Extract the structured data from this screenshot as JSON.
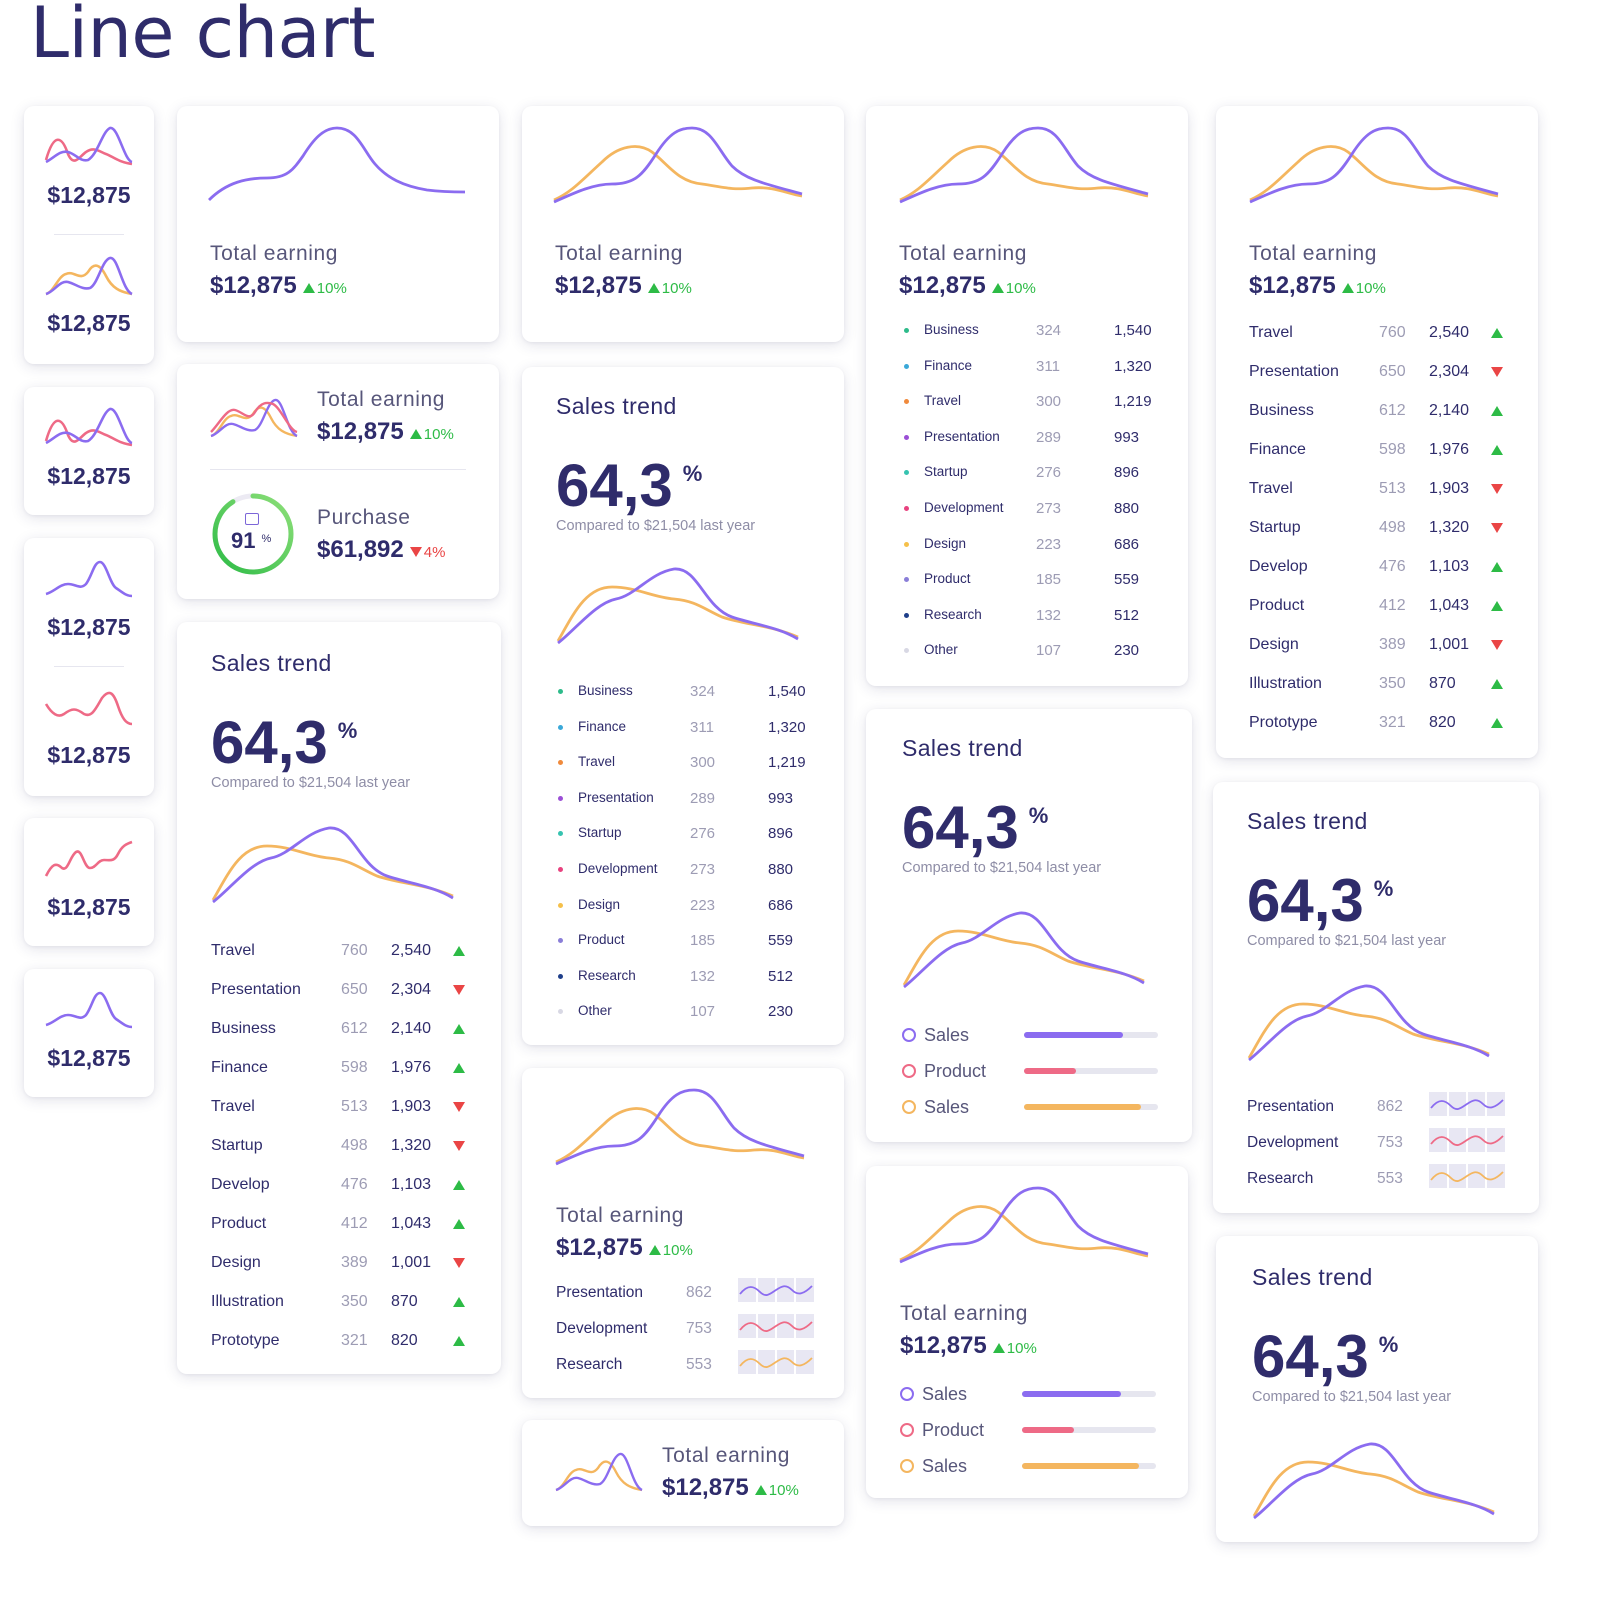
{
  "page_title": "Line chart",
  "colors": {
    "purple": "#8b6cf0",
    "orange": "#f4b65f",
    "pink": "#ee6a86",
    "green": "#2dbb46",
    "red": "#ea4545",
    "navy": "#2f2c6b"
  },
  "mini": {
    "value": "$12,875"
  },
  "earning": {
    "label": "Total earning",
    "value": "$12,875",
    "change": "10%"
  },
  "purchase": {
    "label": "Purchase",
    "value": "$61,892",
    "change": "4%",
    "gauge": "91",
    "gauge_unit": "%",
    "gauge_level": 0.91,
    "icon": "bag-icon"
  },
  "trend": {
    "title": "Sales trend",
    "value": "64,3",
    "unit": "%",
    "compare": "Compared to $21,504 last year"
  },
  "categories": [
    {
      "name": "Travel",
      "a": "760",
      "b": "2,540",
      "dir": "up"
    },
    {
      "name": "Presentation",
      "a": "650",
      "b": "2,304",
      "dir": "down"
    },
    {
      "name": "Business",
      "a": "612",
      "b": "2,140",
      "dir": "up"
    },
    {
      "name": "Finance",
      "a": "598",
      "b": "1,976",
      "dir": "up"
    },
    {
      "name": "Travel",
      "a": "513",
      "b": "1,903",
      "dir": "down"
    },
    {
      "name": "Startup",
      "a": "498",
      "b": "1,320",
      "dir": "down"
    },
    {
      "name": "Develop",
      "a": "476",
      "b": "1,103",
      "dir": "up"
    },
    {
      "name": "Product",
      "a": "412",
      "b": "1,043",
      "dir": "up"
    },
    {
      "name": "Design",
      "a": "389",
      "b": "1,001",
      "dir": "down"
    },
    {
      "name": "Illustration",
      "a": "350",
      "b": "870",
      "dir": "up"
    },
    {
      "name": "Prototype",
      "a": "321",
      "b": "820",
      "dir": "up"
    }
  ],
  "bullets": [
    {
      "name": "Business",
      "a": "324",
      "b": "1,540",
      "color": "#2dbb8a"
    },
    {
      "name": "Finance",
      "a": "311",
      "b": "1,320",
      "color": "#3aa8d8"
    },
    {
      "name": "Travel",
      "a": "300",
      "b": "1,219",
      "color": "#f08a3c"
    },
    {
      "name": "Presentation",
      "a": "289",
      "b": "993",
      "color": "#9b4fd6"
    },
    {
      "name": "Startup",
      "a": "276",
      "b": "896",
      "color": "#36c3b0"
    },
    {
      "name": "Development",
      "a": "273",
      "b": "880",
      "color": "#e8427f"
    },
    {
      "name": "Design",
      "a": "223",
      "b": "686",
      "color": "#f5c04a"
    },
    {
      "name": "Product",
      "a": "185",
      "b": "559",
      "color": "#8a7ed8"
    },
    {
      "name": "Research",
      "a": "132",
      "b": "512",
      "color": "#1f3f8a"
    },
    {
      "name": "Other",
      "a": "107",
      "b": "230",
      "color": "#d8d8e4"
    }
  ],
  "sparks": [
    {
      "name": "Presentation",
      "value": "862",
      "color": "#8b6cf0"
    },
    {
      "name": "Development",
      "value": "753",
      "color": "#ee6a86"
    },
    {
      "name": "Research",
      "value": "553",
      "color": "#f4b65f"
    }
  ],
  "progress": [
    {
      "name": "Sales",
      "level": 0.74,
      "color": "#8b6cf0"
    },
    {
      "name": "Product",
      "level": 0.39,
      "color": "#ee6a86"
    },
    {
      "name": "Sales",
      "level": 0.87,
      "color": "#f4b65f"
    }
  ]
}
